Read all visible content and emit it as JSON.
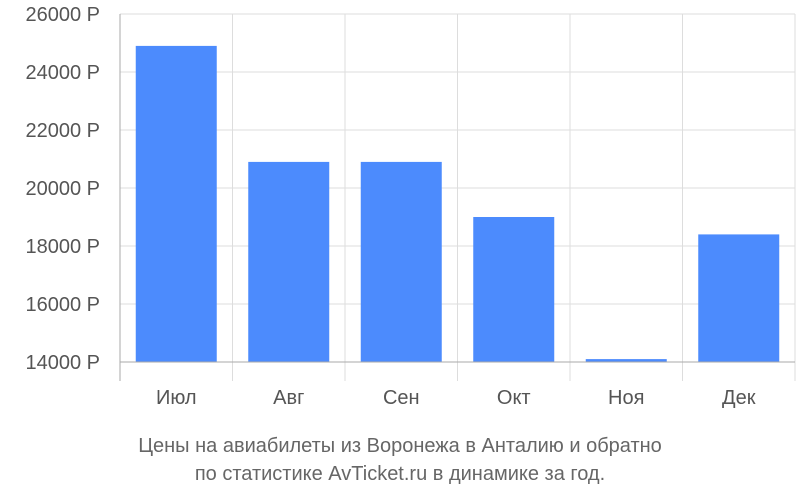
{
  "chart_data": {
    "type": "bar",
    "categories": [
      "Июл",
      "Авг",
      "Сен",
      "Окт",
      "Ноя",
      "Дек"
    ],
    "values": [
      24900,
      20900,
      20900,
      19000,
      14100,
      18400
    ],
    "ylim": [
      14000,
      26000
    ],
    "yticks": [
      14000,
      16000,
      18000,
      20000,
      22000,
      24000,
      26000
    ],
    "ytick_suffix": " Р",
    "bar_color": "#4c8bfd",
    "grid_color": "#dddddd",
    "axis_color": "#aaaaaa",
    "grid": true
  },
  "caption": {
    "line1": "Цены на авиабилеты из Воронежа в Анталию и обратно",
    "line2": "по статистике AvTicket.ru в динамике за год."
  }
}
